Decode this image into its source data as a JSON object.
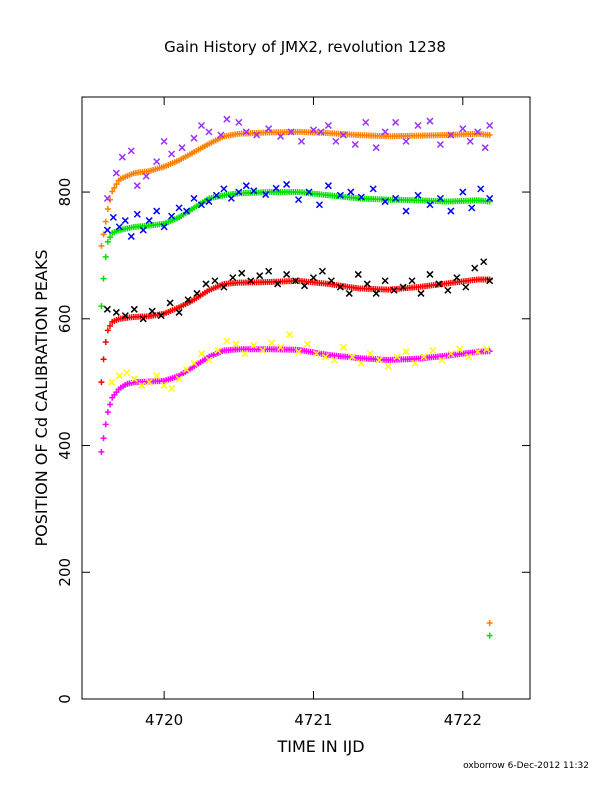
{
  "chart_data": {
    "type": "scatter",
    "title": "Gain History of JMX2, revolution 1238",
    "xlabel": "TIME IN IJD",
    "ylabel": "POSITION OF Cd CALIBRATION PEAKS",
    "xlim": [
      4719.45,
      4722.45
    ],
    "ylim": [
      0,
      950
    ],
    "x_ticks": [
      4720,
      4721,
      4722
    ],
    "y_ticks": [
      0,
      200,
      400,
      600,
      800
    ],
    "grid": false,
    "footer": "oxborrow 6-Dec-2012 11:32",
    "series": [
      {
        "role": "fit",
        "color": "#ff8000",
        "marker": "+",
        "x": [
          4719.58,
          4719.6,
          4719.62,
          4719.65,
          4719.7,
          4719.8,
          4719.9,
          4720.0,
          4720.1,
          4720.2,
          4720.3,
          4720.4,
          4720.5,
          4720.7,
          4720.9,
          4721.1,
          4721.3,
          4721.5,
          4721.7,
          4721.9,
          4722.1,
          4722.18
        ],
        "y": [
          715,
          740,
          770,
          800,
          820,
          830,
          833,
          840,
          850,
          863,
          876,
          888,
          892,
          894,
          895,
          893,
          890,
          888,
          889,
          890,
          892,
          890
        ],
        "outliers": [
          [
            4722.18,
            120
          ]
        ]
      },
      {
        "role": "data",
        "color": "#9b30ff",
        "marker": "x",
        "x": [
          4719.62,
          4719.68,
          4719.72,
          4719.78,
          4719.82,
          4719.88,
          4719.95,
          4720.0,
          4720.05,
          4720.12,
          4720.2,
          4720.25,
          4720.3,
          4720.38,
          4720.42,
          4720.5,
          4720.55,
          4720.62,
          4720.7,
          4720.78,
          4720.85,
          4720.92,
          4721.0,
          4721.05,
          4721.1,
          4721.15,
          4721.2,
          4721.28,
          4721.35,
          4721.42,
          4721.48,
          4721.55,
          4721.62,
          4721.7,
          4721.78,
          4721.85,
          4721.92,
          4722.0,
          4722.05,
          4722.1,
          4722.15,
          4722.18
        ],
        "y": [
          790,
          830,
          855,
          865,
          810,
          825,
          848,
          880,
          860,
          870,
          885,
          905,
          895,
          890,
          915,
          910,
          895,
          890,
          900,
          888,
          895,
          880,
          898,
          895,
          905,
          880,
          890,
          875,
          910,
          870,
          895,
          910,
          880,
          905,
          912,
          875,
          890,
          900,
          880,
          895,
          870,
          905
        ]
      },
      {
        "role": "fit",
        "color": "#00e000",
        "marker": "+",
        "x": [
          4719.58,
          4719.6,
          4719.62,
          4719.65,
          4719.7,
          4719.8,
          4719.9,
          4720.0,
          4720.1,
          4720.2,
          4720.3,
          4720.4,
          4720.5,
          4720.7,
          4720.9,
          4721.1,
          4721.3,
          4721.5,
          4721.7,
          4721.9,
          4722.1,
          4722.18
        ],
        "y": [
          620,
          680,
          720,
          735,
          740,
          745,
          747,
          750,
          760,
          775,
          790,
          795,
          798,
          800,
          800,
          795,
          790,
          788,
          787,
          785,
          787,
          785
        ],
        "outliers": [
          [
            4722.18,
            100
          ]
        ]
      },
      {
        "role": "data",
        "color": "#0000ff",
        "marker": "x",
        "x": [
          4719.62,
          4719.66,
          4719.7,
          4719.74,
          4719.78,
          4719.82,
          4719.86,
          4719.9,
          4719.95,
          4720.0,
          4720.05,
          4720.1,
          4720.15,
          4720.2,
          4720.25,
          4720.3,
          4720.35,
          4720.4,
          4720.45,
          4720.5,
          4720.55,
          4720.6,
          4720.68,
          4720.75,
          4720.82,
          4720.9,
          4720.97,
          4721.04,
          4721.1,
          4721.18,
          4721.25,
          4721.32,
          4721.4,
          4721.48,
          4721.55,
          4721.62,
          4721.7,
          4721.78,
          4721.85,
          4721.92,
          4722.0,
          4722.06,
          4722.12,
          4722.18
        ],
        "y": [
          740,
          760,
          745,
          755,
          730,
          765,
          740,
          755,
          770,
          745,
          762,
          775,
          770,
          790,
          780,
          785,
          795,
          805,
          790,
          800,
          810,
          802,
          796,
          806,
          812,
          788,
          800,
          780,
          810,
          795,
          800,
          792,
          805,
          785,
          790,
          770,
          795,
          780,
          790,
          770,
          800,
          775,
          805,
          790
        ]
      },
      {
        "role": "fit",
        "color": "#ff0000",
        "marker": "+",
        "x": [
          4719.58,
          4719.6,
          4719.62,
          4719.65,
          4719.7,
          4719.8,
          4719.9,
          4720.0,
          4720.1,
          4720.2,
          4720.3,
          4720.4,
          4720.5,
          4720.7,
          4720.9,
          4721.1,
          4721.3,
          4721.5,
          4721.7,
          4721.9,
          4722.1,
          4722.18
        ],
        "y": [
          500,
          550,
          580,
          595,
          600,
          603,
          604,
          608,
          618,
          630,
          645,
          655,
          657,
          658,
          660,
          655,
          648,
          646,
          650,
          656,
          662,
          662
        ]
      },
      {
        "role": "data",
        "color": "#000000",
        "marker": "x",
        "x": [
          4719.62,
          4719.68,
          4719.74,
          4719.8,
          4719.86,
          4719.92,
          4719.98,
          4720.04,
          4720.1,
          4720.16,
          4720.22,
          4720.28,
          4720.34,
          4720.4,
          4720.46,
          4720.52,
          4720.58,
          4720.64,
          4720.7,
          4720.76,
          4720.82,
          4720.88,
          4720.94,
          4721.0,
          4721.06,
          4721.12,
          4721.18,
          4721.24,
          4721.3,
          4721.36,
          4721.42,
          4721.48,
          4721.54,
          4721.6,
          4721.66,
          4721.72,
          4721.78,
          4721.84,
          4721.9,
          4721.96,
          4722.02,
          4722.08,
          4722.14,
          4722.18
        ],
        "y": [
          615,
          610,
          605,
          615,
          600,
          612,
          605,
          625,
          610,
          630,
          640,
          655,
          660,
          650,
          665,
          672,
          660,
          668,
          675,
          655,
          670,
          660,
          652,
          665,
          675,
          660,
          650,
          640,
          670,
          655,
          640,
          660,
          645,
          650,
          660,
          640,
          670,
          655,
          645,
          665,
          650,
          680,
          690,
          660
        ]
      },
      {
        "role": "fit",
        "color": "#ff00ff",
        "marker": "+",
        "x": [
          4719.58,
          4719.6,
          4719.62,
          4719.65,
          4719.7,
          4719.75,
          4719.8,
          4719.9,
          4720.0,
          4720.1,
          4720.2,
          4720.3,
          4720.4,
          4720.5,
          4720.7,
          4720.9,
          4721.1,
          4721.3,
          4721.5,
          4721.7,
          4721.9,
          4722.1,
          4722.18
        ],
        "y": [
          390,
          420,
          450,
          475,
          490,
          497,
          500,
          501,
          502,
          510,
          525,
          540,
          550,
          552,
          552,
          551,
          543,
          538,
          535,
          537,
          542,
          548,
          549
        ]
      },
      {
        "role": "data",
        "color": "#ffff00",
        "marker": "x",
        "x": [
          4719.65,
          4719.7,
          4719.75,
          4719.8,
          4719.85,
          4719.9,
          4719.95,
          4720.0,
          4720.05,
          4720.1,
          4720.15,
          4720.2,
          4720.25,
          4720.3,
          4720.36,
          4720.42,
          4720.48,
          4720.54,
          4720.6,
          4720.66,
          4720.72,
          4720.78,
          4720.84,
          4720.9,
          4720.96,
          4721.02,
          4721.08,
          4721.14,
          4721.2,
          4721.26,
          4721.32,
          4721.38,
          4721.44,
          4721.5,
          4721.56,
          4721.62,
          4721.68,
          4721.74,
          4721.8,
          4721.86,
          4721.92,
          4721.98,
          4722.04,
          4722.1,
          4722.16
        ],
        "y": [
          500,
          510,
          515,
          505,
          495,
          500,
          510,
          495,
          490,
          505,
          520,
          530,
          545,
          535,
          550,
          565,
          560,
          545,
          558,
          550,
          562,
          555,
          575,
          548,
          560,
          545,
          540,
          535,
          555,
          540,
          530,
          545,
          535,
          525,
          540,
          548,
          530,
          540,
          550,
          535,
          545,
          552,
          540,
          548,
          552
        ]
      }
    ]
  }
}
